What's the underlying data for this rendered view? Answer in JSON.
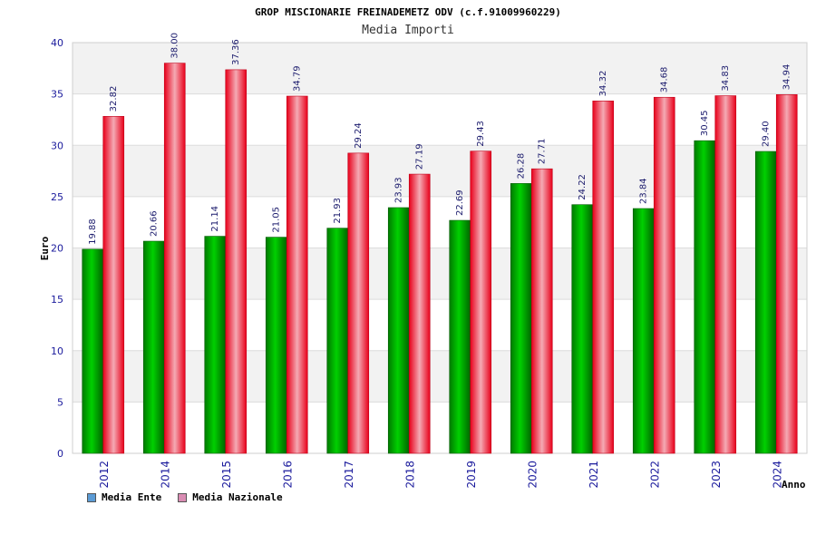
{
  "chart_data": {
    "type": "bar",
    "title": "GROP MISCIONARIE FREINADEMETZ ODV (c.f.91009960229)",
    "subtitle": "Media Importi",
    "xlabel": "Anno",
    "ylabel": "Euro",
    "ylim": [
      0,
      40
    ],
    "yticks": [
      0,
      5,
      10,
      15,
      20,
      25,
      30,
      35,
      40
    ],
    "categories": [
      "2012",
      "2014",
      "2015",
      "2016",
      "2017",
      "2018",
      "2019",
      "2020",
      "2021",
      "2022",
      "2023",
      "2024"
    ],
    "series": [
      {
        "name": "Media Ente",
        "color": "#00b000",
        "values": [
          19.88,
          20.66,
          21.14,
          21.05,
          21.93,
          23.93,
          22.69,
          26.28,
          24.22,
          23.84,
          30.45,
          29.4
        ],
        "labels": [
          "19.88",
          "20.66",
          "21.14",
          "21.05",
          "21.93",
          "23.93",
          "22.69",
          "26.28",
          "24.22",
          "23.84",
          "30.45",
          "29.40"
        ]
      },
      {
        "name": "Media Nazionale",
        "color": "#ee1c2c",
        "values": [
          32.82,
          38.0,
          37.36,
          34.79,
          29.24,
          27.19,
          29.43,
          27.71,
          34.32,
          34.68,
          34.83,
          34.94
        ],
        "labels": [
          "32.82",
          "38.00",
          "37.36",
          "34.79",
          "29.24",
          "27.19",
          "29.43",
          "27.71",
          "34.32",
          "34.68",
          "34.83",
          "34.94"
        ]
      }
    ],
    "legend_position": "bottom-left",
    "grid": true
  },
  "legend": {
    "items": [
      {
        "label": "Media Ente",
        "color": "#5b9bd5"
      },
      {
        "label": "Media Nazionale",
        "color": "#d98cb3"
      }
    ]
  }
}
